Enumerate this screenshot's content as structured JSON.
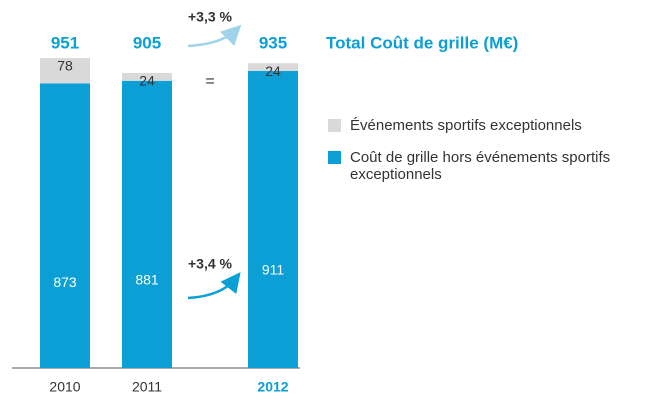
{
  "chart_data": {
    "type": "stacked_bar",
    "title": "Total Coût de grille (M€)",
    "categories": [
      "2010",
      "2011",
      "2012"
    ],
    "highlight": 2,
    "totals": [
      951,
      905,
      935
    ],
    "series": [
      {
        "name": "Coût de grille hors événements sportifs exceptionnels",
        "color": "#0b9fd6",
        "values": [
          873,
          881,
          911
        ]
      },
      {
        "name": "Événements sportifs exceptionnels",
        "color": "#d9d9d9",
        "values": [
          78,
          24,
          24
        ]
      }
    ],
    "annotations": [
      "+3,3 %",
      "=",
      "+3,4 %"
    ]
  }
}
